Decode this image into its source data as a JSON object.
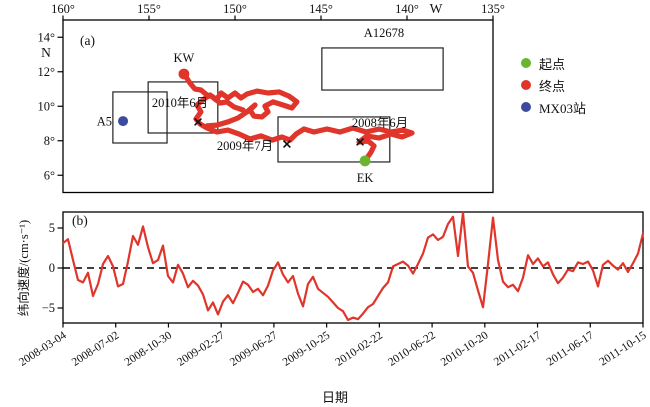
{
  "panel_a": {
    "label": "(a)"
  },
  "panel_b": {
    "label": "(b)"
  },
  "legend": {
    "items": [
      {
        "name": "start-point",
        "label": "起点",
        "color": "#6ab42f"
      },
      {
        "name": "end-point",
        "label": "终点",
        "color": "#e0352b"
      },
      {
        "name": "mx03-station",
        "label": "MX03站",
        "color": "#3d4b9e"
      }
    ]
  },
  "chart_data": [
    {
      "type": "line",
      "name": "drifter-trajectory-map",
      "panel_label": "(a)",
      "lon_unit": "W",
      "lat_unit": "N",
      "lon_range": [
        160,
        135
      ],
      "lat_range": [
        5,
        15
      ],
      "lon_ticks": [
        {
          "label": "160°",
          "value": 160
        },
        {
          "label": "155°",
          "value": 155
        },
        {
          "label": "150°",
          "value": 150
        },
        {
          "label": "145°",
          "value": 145
        },
        {
          "label": "140°",
          "value": 140
        },
        {
          "label": "135°",
          "value": 135
        }
      ],
      "lat_ticks": [
        {
          "label": "14°",
          "value": 14
        },
        {
          "label": "12°",
          "value": 12
        },
        {
          "label": "10°",
          "value": 10
        },
        {
          "label": "8°",
          "value": 8
        },
        {
          "label": "6°",
          "value": 6
        }
      ],
      "boxes": [
        {
          "name": "station-A5-box",
          "lon_w": 157.1,
          "lon_e": 153.95,
          "lat_s": 7.87,
          "lat_n": 10.83
        },
        {
          "name": "june-2010-box",
          "lon_w": 155.05,
          "lon_e": 151.0,
          "lat_s": 8.45,
          "lat_n": 11.41
        },
        {
          "name": "june-2008-box",
          "lon_w": 147.5,
          "lon_e": 141.0,
          "lat_s": 6.77,
          "lat_n": 9.38
        },
        {
          "name": "A12678-box",
          "lon_w": 144.95,
          "lon_e": 137.9,
          "lat_s": 10.94,
          "lat_n": 13.38
        }
      ],
      "annotations": [
        {
          "text": "KW",
          "lon": 152.97,
          "lat": 12.8,
          "anchor": "middle"
        },
        {
          "text": "A5",
          "lon": 157.15,
          "lat": 9.14,
          "anchor": "end"
        },
        {
          "text": "EK",
          "lon": 142.44,
          "lat": 5.84,
          "anchor": "middle"
        },
        {
          "text": "A12678",
          "lon": 141.34,
          "lat": 14.25,
          "anchor": "middle"
        },
        {
          "text": "2010年6月",
          "lon": 153.2,
          "lat": 10.19,
          "anchor": "middle"
        },
        {
          "text": "2009年7月",
          "lon": 149.42,
          "lat": 7.7,
          "anchor": "middle"
        },
        {
          "text": "2008年6月",
          "lon": 141.57,
          "lat": 9.03,
          "anchor": "middle"
        }
      ],
      "markers": {
        "start": {
          "label": "EK",
          "lon": 142.44,
          "lat": 6.83,
          "color": "#6ab42f"
        },
        "end": {
          "label": "KW",
          "lon": 152.97,
          "lat": 11.87,
          "color": "#e0352b"
        },
        "station": {
          "label": "A5",
          "lon": 156.51,
          "lat": 9.14,
          "color": "#3d4b9e"
        }
      },
      "x_marks": [
        {
          "label": "2008年6月",
          "lon": 142.73,
          "lat": 7.93
        },
        {
          "label": "2009年7月",
          "lon": 146.98,
          "lat": 7.81
        },
        {
          "label": "2010年6月",
          "lon": 152.15,
          "lat": 9.09
        }
      ],
      "trajectory": {
        "color": "#e0352b",
        "segments": [
          [
            [
              142.44,
              6.83
            ],
            [
              142.09,
              7.35
            ],
            [
              141.92,
              7.7
            ],
            [
              142.27,
              7.99
            ],
            [
              142.79,
              7.93
            ],
            [
              142.33,
              8.28
            ],
            [
              141.63,
              8.16
            ],
            [
              140.93,
              8.39
            ],
            [
              140.29,
              8.22
            ],
            [
              139.71,
              8.45
            ],
            [
              140.23,
              8.62
            ],
            [
              140.93,
              8.51
            ],
            [
              141.63,
              8.68
            ],
            [
              142.38,
              8.51
            ],
            [
              143.14,
              8.74
            ],
            [
              143.9,
              8.51
            ],
            [
              144.65,
              8.68
            ],
            [
              145.41,
              8.51
            ],
            [
              145.99,
              8.68
            ],
            [
              146.45,
              8.39
            ],
            [
              146.8,
              8.04
            ],
            [
              147.27,
              8.22
            ],
            [
              147.85,
              8.04
            ],
            [
              148.49,
              8.28
            ],
            [
              149.13,
              8.1
            ],
            [
              149.77,
              8.39
            ],
            [
              150.41,
              8.62
            ],
            [
              151.05,
              8.51
            ],
            [
              151.63,
              8.74
            ],
            [
              152.03,
              8.97
            ],
            [
              152.27,
              9.26
            ],
            [
              151.98,
              9.67
            ],
            [
              152.21,
              10.07
            ],
            [
              151.8,
              10.42
            ],
            [
              151.45,
              10.65
            ],
            [
              151.1,
              10.36
            ],
            [
              150.81,
              10.77
            ],
            [
              150.41,
              10.48
            ],
            [
              150.0,
              10.77
            ],
            [
              149.65,
              10.48
            ],
            [
              149.3,
              10.71
            ],
            [
              148.72,
              10.88
            ],
            [
              148.08,
              10.77
            ],
            [
              147.44,
              10.83
            ],
            [
              146.86,
              10.59
            ],
            [
              146.4,
              10.25
            ],
            [
              146.69,
              9.9
            ],
            [
              147.21,
              10.07
            ],
            [
              147.79,
              10.25
            ],
            [
              148.26,
              10.01
            ],
            [
              148.08,
              9.67
            ],
            [
              148.43,
              9.38
            ],
            [
              148.9,
              9.43
            ],
            [
              149.13,
              9.78
            ],
            [
              148.84,
              10.07
            ],
            [
              149.3,
              9.67
            ],
            [
              149.83,
              9.32
            ],
            [
              150.41,
              9.09
            ],
            [
              151.05,
              8.91
            ],
            [
              151.63,
              8.86
            ]
          ],
          [
            [
              149.53,
              9.78
            ],
            [
              150.06,
              9.96
            ],
            [
              150.47,
              10.25
            ],
            [
              150.87,
              10.19
            ],
            [
              151.28,
              10.54
            ],
            [
              151.63,
              10.65
            ],
            [
              151.98,
              10.94
            ],
            [
              152.33,
              11.0
            ],
            [
              152.62,
              11.35
            ],
            [
              152.85,
              11.7
            ],
            [
              152.97,
              11.87
            ]
          ]
        ]
      }
    },
    {
      "type": "line",
      "name": "zonal-velocity-timeseries",
      "panel_label": "(b)",
      "ylabel": "纬向速度/(cm·s⁻¹)",
      "xlabel": "日期",
      "line_color": "#e0352b",
      "zero_line": "dashed",
      "ylim": [
        -7,
        7
      ],
      "y_ticks": [
        {
          "label": "5",
          "value": 5
        },
        {
          "label": "0",
          "value": 0
        },
        {
          "label": "−5",
          "value": -5
        }
      ],
      "x_tick_labels": [
        "2008-03-04",
        "2008-07-02",
        "2008-10-30",
        "2009-02-27",
        "2009-06-27",
        "2009-10-25",
        "2010-02-22",
        "2010-06-22",
        "2010-10-20",
        "2011-02-17",
        "2011-06-17",
        "2011-10-15"
      ],
      "values": [
        3.1,
        3.6,
        1.0,
        -1.5,
        -1.8,
        -0.6,
        -3.5,
        -2.0,
        0.5,
        1.5,
        0.2,
        -2.3,
        -2.0,
        0.8,
        4.0,
        2.9,
        5.2,
        2.6,
        0.6,
        1.0,
        2.8,
        -1.0,
        -1.8,
        0.4,
        -0.7,
        -2.4,
        -1.6,
        -2.2,
        -3.3,
        -5.3,
        -4.3,
        -5.8,
        -4.2,
        -3.4,
        -4.4,
        -3.1,
        -1.7,
        -2.1,
        -3.0,
        -2.6,
        -3.4,
        -2.2,
        -0.3,
        0.7,
        -0.8,
        -1.8,
        -1.0,
        -3.2,
        -4.8,
        -2.0,
        -1.1,
        -2.6,
        -3.1,
        -3.6,
        -4.3,
        -5.0,
        -5.4,
        -6.5,
        -6.2,
        -6.4,
        -5.7,
        -4.9,
        -4.5,
        -3.5,
        -2.5,
        -1.8,
        0.2,
        0.5,
        0.8,
        0.3,
        -0.7,
        0.5,
        1.8,
        3.8,
        4.2,
        3.5,
        3.9,
        5.5,
        6.4,
        1.5,
        6.9,
        0.2,
        -0.6,
        -2.8,
        -4.9,
        0.5,
        6.3,
        1.0,
        -1.7,
        -2.4,
        -2.1,
        -2.9,
        -1.2,
        1.6,
        0.5,
        1.2,
        0.2,
        0.7,
        -0.8,
        -1.9,
        -1.2,
        -0.2,
        -0.4,
        0.7,
        0.5,
        0.8,
        -0.3,
        -2.3,
        0.4,
        0.9,
        0.3,
        -0.2,
        0.6,
        -0.5,
        0.6,
        1.8,
        4.3
      ]
    }
  ]
}
